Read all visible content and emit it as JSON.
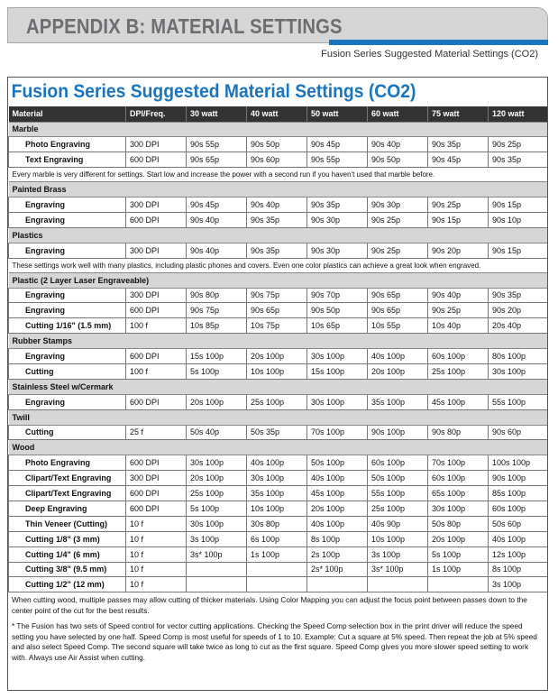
{
  "header": {
    "title": "APPENDIX B: MATERIAL SETTINGS",
    "subtitle": "Fusion Series Suggested Material Settings (CO2)",
    "accent_color": "#1b75bc"
  },
  "table": {
    "title": "Fusion Series Suggested Material Settings (CO2)",
    "columns": [
      "Material",
      "DPI/Freq.",
      "30 watt",
      "40 watt",
      "50 watt",
      "60 watt",
      "75 watt",
      "120 watt"
    ],
    "sections": [
      {
        "category": "Marble",
        "rows": [
          {
            "label": "Photo Engraving",
            "cells": [
              "300 DPI",
              "90s 55p",
              "90s 50p",
              "90s 45p",
              "90s 40p",
              "90s 35p",
              "90s 25p"
            ]
          },
          {
            "label": "Text Engraving",
            "cells": [
              "600 DPI",
              "90s 65p",
              "90s 60p",
              "90s 55p",
              "90s 50p",
              "90s 45p",
              "90s 35p"
            ]
          }
        ],
        "note": "Every marble is very different for settings. Start low and increase the power with a second run if you haven't used that marble before."
      },
      {
        "category": "Painted Brass",
        "rows": [
          {
            "label": "Engraving",
            "cells": [
              "300 DPI",
              "90s 45p",
              "90s 40p",
              "90s 35p",
              "90s 30p",
              "90s 25p",
              "90s 15p"
            ]
          },
          {
            "label": "Engraving",
            "cells": [
              "600 DPI",
              "90s 40p",
              "90s 35p",
              "90s 30p",
              "90s 25p",
              "90s 15p",
              "90s 10p"
            ]
          }
        ],
        "note": ""
      },
      {
        "category": "Plastics",
        "rows": [
          {
            "label": "Engraving",
            "cells": [
              "300 DPI",
              "90s 40p",
              "90s 35p",
              "90s 30p",
              "90s 25p",
              "90s 20p",
              "90s 15p"
            ]
          }
        ],
        "note": "These settings work well with many plastics, including plastic phones and covers. Even one color plastics can achieve a great look when engraved."
      },
      {
        "category": "Plastic (2 Layer Laser Engraveable)",
        "rows": [
          {
            "label": "Engraving",
            "cells": [
              "300 DPI",
              "90s 80p",
              "90s 75p",
              "90s 70p",
              "90s 65p",
              "90s 40p",
              "90s 35p"
            ]
          },
          {
            "label": "Engraving",
            "cells": [
              "600 DPI",
              "90s 75p",
              "90s 65p",
              "90s 50p",
              "90s 65p",
              "90s 25p",
              "90s 20p"
            ]
          },
          {
            "label": "Cutting 1/16\" (1.5 mm)",
            "cells": [
              "100 f",
              "10s 85p",
              "10s 75p",
              "10s 65p",
              "10s 55p",
              "10s 40p",
              "20s 40p"
            ]
          }
        ],
        "note": ""
      },
      {
        "category": "Rubber Stamps",
        "rows": [
          {
            "label": "Engraving",
            "cells": [
              "600 DPI",
              "15s 100p",
              "20s 100p",
              "30s 100p",
              "40s 100p",
              "60s 100p",
              "80s 100p"
            ]
          },
          {
            "label": "Cutting",
            "cells": [
              "100 f",
              "5s 100p",
              "10s 100p",
              "15s 100p",
              "20s 100p",
              "25s 100p",
              "30s 100p"
            ]
          }
        ],
        "note": ""
      },
      {
        "category": "Stainless Steel w/Cermark",
        "rows": [
          {
            "label": "Engraving",
            "cells": [
              "600 DPI",
              "20s 100p",
              "25s 100p",
              "30s 100p",
              "35s 100p",
              "45s 100p",
              "55s 100p"
            ]
          }
        ],
        "note": ""
      },
      {
        "category": "Twill",
        "rows": [
          {
            "label": "Cutting",
            "cells": [
              "25 f",
              "50s 40p",
              "50s 35p",
              "70s 100p",
              "90s 100p",
              "90s 80p",
              "90s 60p"
            ]
          }
        ],
        "note": ""
      },
      {
        "category": "Wood",
        "rows": [
          {
            "label": "Photo Engraving",
            "cells": [
              "600 DPI",
              "30s 100p",
              "40s 100p",
              "50s 100p",
              "60s 100p",
              "70s 100p",
              "100s 100p"
            ]
          },
          {
            "label": "Clipart/Text Engraving",
            "cells": [
              "300 DPI",
              "20s 100p",
              "30s 100p",
              "40s 100p",
              "50s 100p",
              "60s 100p",
              "90s 100p"
            ]
          },
          {
            "label": "Clipart/Text Engraving",
            "cells": [
              "600 DPI",
              "25s 100p",
              "35s 100p",
              "45s 100p",
              "55s 100p",
              "65s 100p",
              "85s 100p"
            ]
          },
          {
            "label": "Deep Engraving",
            "cells": [
              "600 DPI",
              "5s 100p",
              "10s 100p",
              "20s 100p",
              "25s 100p",
              "30s 100p",
              "60s 100p"
            ]
          },
          {
            "label": "Thin Veneer (Cutting)",
            "cells": [
              "10 f",
              "30s 100p",
              "30s 80p",
              "40s 100p",
              "40s 90p",
              "50s 80p",
              "50s 60p"
            ]
          },
          {
            "label": "Cutting 1/8\" (3 mm)",
            "cells": [
              "10 f",
              "3s 100p",
              "6s 100p",
              "8s 100p",
              "10s 100p",
              "20s 100p",
              "40s 100p"
            ]
          },
          {
            "label": "Cutting 1/4\" (6 mm)",
            "cells": [
              "10 f",
              "3s* 100p",
              "1s 100p",
              "2s 100p",
              "3s 100p",
              "5s 100p",
              "12s 100p"
            ]
          },
          {
            "label": "Cutting 3/8\" (9.5 mm)",
            "cells": [
              "10 f",
              "",
              "",
              "2s* 100p",
              "3s* 100p",
              "1s 100p",
              "8s 100p"
            ]
          },
          {
            "label": "Cutting 1/2\" (12 mm)",
            "cells": [
              "10 f",
              "",
              "",
              "",
              "",
              "",
              "3s 100p"
            ]
          }
        ],
        "note": ""
      }
    ],
    "footnotes": [
      "When cutting wood, multiple passes may allow cutting of thicker materials. Using Color Mapping you can adjust the focus point between passes down to the center point of the cut for the best results.",
      "* The Fusion has two sets of Speed control for vector cutting applications. Checking the Speed Comp selection box in the print driver will reduce the speed setting you have selected by one half. Speed Comp is most useful for speeds of 1 to 10. Example: Cut a square at 5% speed. Then repeat the job at 5% speed and also select Speed Comp. The second square will take twice as long to cut as the first square. Speed Comp gives you more slower speed setting to work with. Always use Air Assist when cutting."
    ]
  }
}
